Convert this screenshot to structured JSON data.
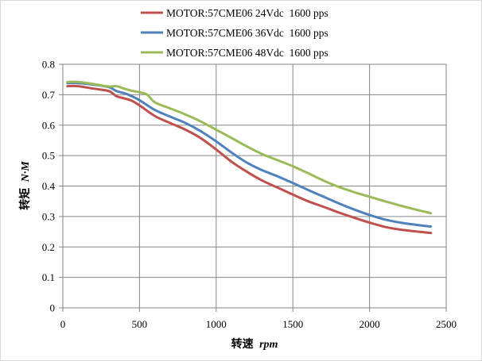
{
  "chart_data": {
    "type": "line",
    "title": "",
    "xlabel_prefix": "转速",
    "xlabel_unit": "rpm",
    "ylabel_prefix": "转矩",
    "ylabel_unit": "N·M",
    "xlim": [
      0,
      2500
    ],
    "ylim": [
      0,
      0.8
    ],
    "xticks": [
      0,
      500,
      1000,
      1500,
      2000,
      2500
    ],
    "yticks": [
      0,
      0.1,
      0.2,
      0.3,
      0.4,
      0.5,
      0.6,
      0.7,
      0.8
    ],
    "xtick_labels": [
      "0",
      "500",
      "1000",
      "1500",
      "2000",
      "2500"
    ],
    "ytick_labels": [
      "0",
      "0.1",
      "0.2",
      "0.3",
      "0.4",
      "0.5",
      "0.6",
      "0.7",
      "0.8"
    ],
    "grid": true,
    "legend_position": "top",
    "series": [
      {
        "name": "MOTOR:57CME06 24Vdc  1600 pps",
        "color": "#c0504d",
        "x": [
          30,
          100,
          200,
          300,
          350,
          400,
          450,
          500,
          600,
          700,
          800,
          900,
          1000,
          1100,
          1200,
          1300,
          1400,
          1500,
          1600,
          1700,
          1800,
          1900,
          2000,
          2100,
          2200,
          2300,
          2400
        ],
        "y": [
          0.728,
          0.728,
          0.72,
          0.712,
          0.695,
          0.688,
          0.68,
          0.665,
          0.63,
          0.607,
          0.585,
          0.557,
          0.52,
          0.48,
          0.447,
          0.418,
          0.395,
          0.372,
          0.35,
          0.332,
          0.313,
          0.296,
          0.28,
          0.266,
          0.257,
          0.251,
          0.246
        ]
      },
      {
        "name": "MOTOR:57CME06 36Vdc  1600 pps",
        "color": "#4f81bd",
        "x": [
          30,
          100,
          200,
          300,
          350,
          400,
          450,
          500,
          600,
          700,
          800,
          900,
          1000,
          1100,
          1200,
          1300,
          1400,
          1500,
          1600,
          1700,
          1800,
          1900,
          2000,
          2100,
          2200,
          2300,
          2400
        ],
        "y": [
          0.738,
          0.738,
          0.733,
          0.725,
          0.712,
          0.705,
          0.695,
          0.682,
          0.65,
          0.628,
          0.607,
          0.58,
          0.547,
          0.51,
          0.477,
          0.452,
          0.432,
          0.41,
          0.387,
          0.365,
          0.343,
          0.323,
          0.305,
          0.29,
          0.28,
          0.273,
          0.267
        ]
      },
      {
        "name": "MOTOR:57CME06 48Vdc  1600 pps",
        "color": "#9bbb59",
        "x": [
          30,
          100,
          200,
          300,
          350,
          400,
          450,
          500,
          550,
          600,
          700,
          800,
          900,
          1000,
          1100,
          1200,
          1300,
          1400,
          1500,
          1600,
          1700,
          1800,
          1900,
          2000,
          2100,
          2200,
          2300,
          2400
        ],
        "y": [
          0.742,
          0.742,
          0.735,
          0.727,
          0.728,
          0.72,
          0.713,
          0.708,
          0.7,
          0.675,
          0.655,
          0.635,
          0.612,
          0.585,
          0.558,
          0.53,
          0.505,
          0.485,
          0.465,
          0.442,
          0.418,
          0.397,
          0.38,
          0.365,
          0.35,
          0.336,
          0.323,
          0.311
        ]
      }
    ]
  }
}
